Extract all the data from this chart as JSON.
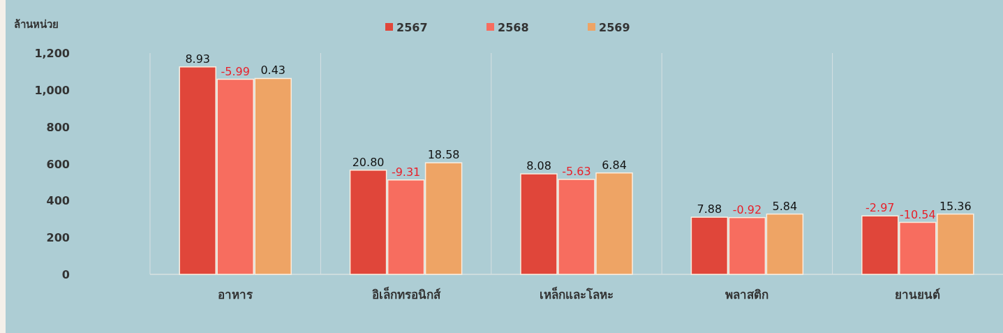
{
  "chart_data": {
    "type": "bar",
    "ylabel": "ล้านหน่วย",
    "categories": [
      "อาหาร",
      "อิเล็กทรอนิกส์",
      "เหล็กและโลหะ",
      "พลาสติก",
      "ยานยนต์"
    ],
    "series": [
      {
        "name": "2567",
        "color": "#e0463a",
        "values": [
          1125,
          565,
          545,
          310,
          317
        ]
      },
      {
        "name": "2568",
        "color": "#f76d5f",
        "values": [
          1058,
          512,
          515,
          308,
          282
        ]
      },
      {
        "name": "2569",
        "color": "#eea465",
        "values": [
          1062,
          605,
          550,
          327,
          327
        ]
      }
    ],
    "annotations": [
      "8.93",
      "-5.99",
      "0.43",
      "20.80",
      "-9.31",
      "18.58",
      "8.08",
      "-5.63",
      "6.84",
      "7.88",
      "-0.92",
      "5.84",
      "-2.97",
      "-10.54",
      "15.36"
    ],
    "ylim": [
      0,
      1200
    ],
    "yticks": [
      {
        "value": 0,
        "label": "0"
      },
      {
        "value": 200,
        "label": "200"
      },
      {
        "value": 400,
        "label": "400"
      },
      {
        "value": 600,
        "label": "600"
      },
      {
        "value": 800,
        "label": "800"
      },
      {
        "value": 1000,
        "label": "1,000"
      },
      {
        "value": 1200,
        "label": "1,200"
      }
    ],
    "grid": false,
    "legend": "top"
  }
}
